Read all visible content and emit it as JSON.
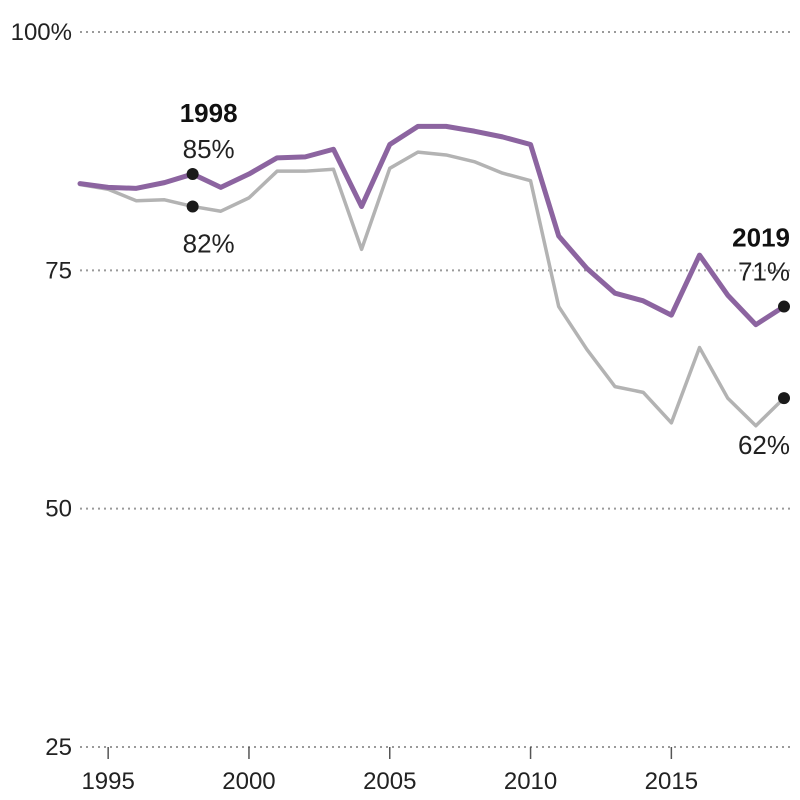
{
  "chart_data": {
    "type": "line",
    "title": "",
    "xlabel": "",
    "ylabel": "",
    "xlim": [
      1994,
      2019
    ],
    "ylim": [
      25,
      100
    ],
    "y_ticks": [
      {
        "value": 100,
        "label": "100%"
      },
      {
        "value": 75,
        "label": "75"
      },
      {
        "value": 50,
        "label": "50"
      },
      {
        "value": 25,
        "label": "25"
      }
    ],
    "x_ticks": [
      {
        "value": 1995,
        "label": "1995"
      },
      {
        "value": 2000,
        "label": "2000"
      },
      {
        "value": 2005,
        "label": "2005"
      },
      {
        "value": 2010,
        "label": "2010"
      },
      {
        "value": 2015,
        "label": "2015"
      }
    ],
    "x": [
      1994,
      1995,
      1996,
      1997,
      1998,
      1999,
      2000,
      2001,
      2002,
      2003,
      2004,
      2005,
      2006,
      2007,
      2008,
      2009,
      2010,
      2011,
      2012,
      2013,
      2014,
      2015,
      2016,
      2017,
      2018,
      2019
    ],
    "series": [
      {
        "name": "gray-series",
        "color": "#b3b3b3",
        "values": [
          84.0,
          83.5,
          82.3,
          82.4,
          81.7,
          81.2,
          82.6,
          85.4,
          85.4,
          85.6,
          77.2,
          85.7,
          87.4,
          87.1,
          86.4,
          85.2,
          84.4,
          71.2,
          66.7,
          62.8,
          62.2,
          59.0,
          66.9,
          61.6,
          58.7,
          61.6
        ]
      },
      {
        "name": "purple-series",
        "color": "#8c64a0",
        "values": [
          84.1,
          83.7,
          83.6,
          84.2,
          85.1,
          83.7,
          85.1,
          86.8,
          86.9,
          87.7,
          81.7,
          88.2,
          90.1,
          90.1,
          89.6,
          89.0,
          88.2,
          78.6,
          75.2,
          72.6,
          71.8,
          70.3,
          76.6,
          72.4,
          69.3,
          71.2
        ]
      }
    ],
    "annotations": [
      {
        "series": "purple-series",
        "x": 1998,
        "y": 85.1,
        "year_label": "1998",
        "value_label": "85%"
      },
      {
        "series": "gray-series",
        "x": 1998,
        "y": 81.7,
        "year_label": "",
        "value_label": "82%"
      },
      {
        "series": "purple-series",
        "x": 2019,
        "y": 71.2,
        "year_label": "2019",
        "value_label": "71%"
      },
      {
        "series": "gray-series",
        "x": 2019,
        "y": 61.6,
        "year_label": "",
        "value_label": "62%"
      }
    ],
    "grid": true,
    "legend": "none"
  }
}
